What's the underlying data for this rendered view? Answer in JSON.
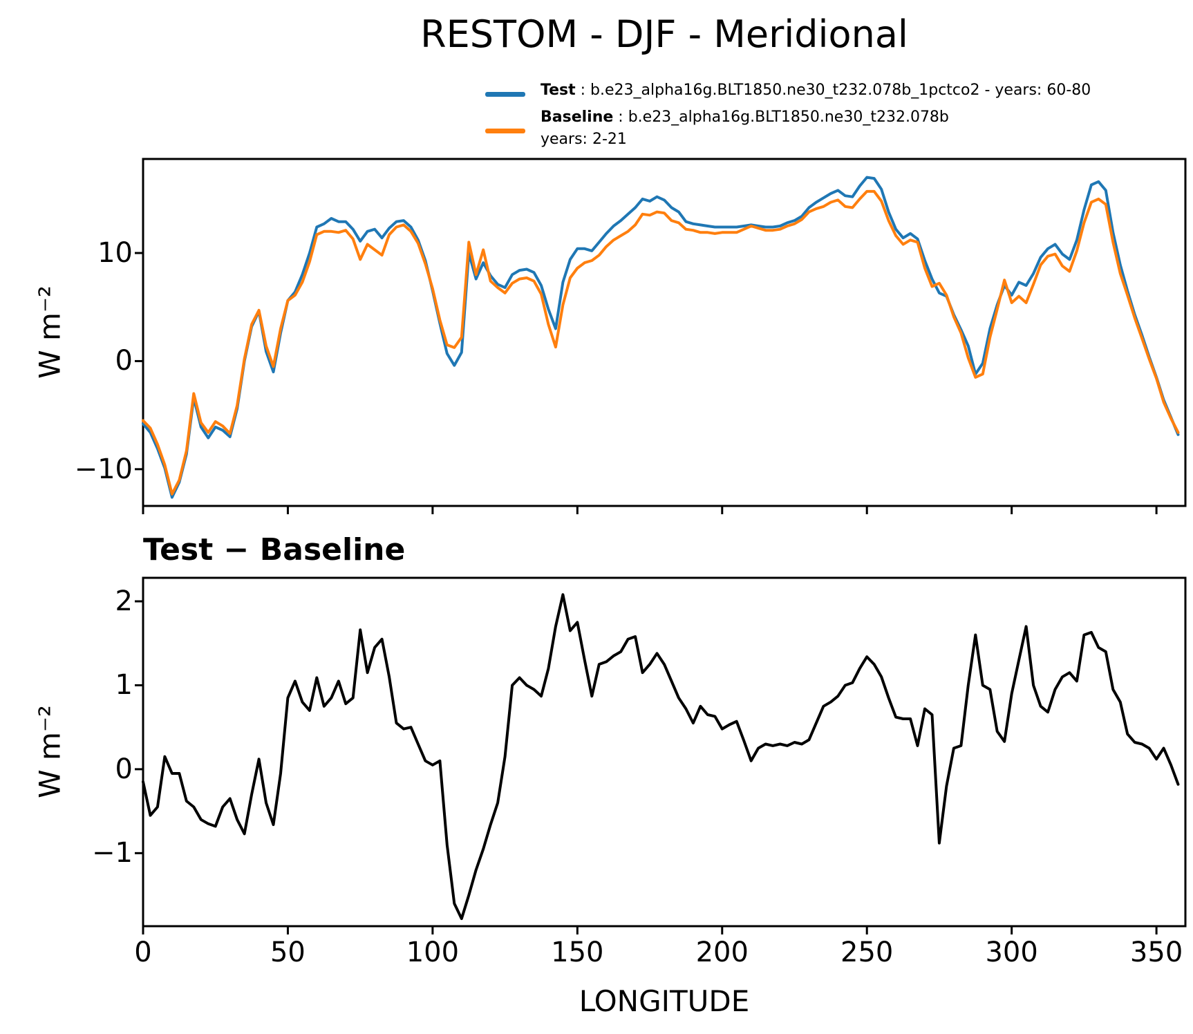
{
  "title": "RESTOM - DJF - Meridional",
  "legend": {
    "test_label": "Test",
    "test_rest": " : b.e23_alpha16g.BLT1850.ne30_t232.078b_1pctco2 - years: 60-80",
    "baseline_label": "Baseline",
    "baseline_rest": " : b.e23_alpha16g.BLT1850.ne30_t232.078b",
    "baseline_years": "years: 2-21"
  },
  "colors": {
    "test": "#1f77b4",
    "baseline": "#ff7f0e",
    "diff": "#000000",
    "axis": "#000000"
  },
  "panel2_title": "Test − Baseline",
  "xlabel": "LONGITUDE",
  "ylabel": "W m⁻²",
  "chart_data": [
    {
      "type": "line",
      "title": "RESTOM - DJF - Meridional",
      "xlabel": "",
      "ylabel": "W m⁻²",
      "xlim": [
        0,
        360
      ],
      "ylim": [
        -13.4,
        18.7
      ],
      "xticks": [
        0,
        50,
        100,
        150,
        200,
        250,
        300,
        350
      ],
      "yticks": [
        -10,
        0,
        10
      ],
      "grid": false,
      "legend_position": "above top right",
      "x_start": 0,
      "x_step": 2.5,
      "series": [
        {
          "name": "Test",
          "legend": "Test : b.e23_alpha16g.BLT1850.ne30_t232.078b_1pctco2 - years: 60-80",
          "color": "#1f77b4",
          "values": [
            -5.8,
            -6.6,
            -8.1,
            -9.9,
            -12.6,
            -11.2,
            -8.6,
            -3.4,
            -6.1,
            -7.1,
            -6.1,
            -6.4,
            -7.0,
            -4.4,
            0.0,
            3.2,
            4.6,
            0.9,
            -1.0,
            2.6,
            5.6,
            6.4,
            8.0,
            10.0,
            12.4,
            12.7,
            13.2,
            12.9,
            12.9,
            12.2,
            11.1,
            12.0,
            12.2,
            11.4,
            12.3,
            12.9,
            13.0,
            12.4,
            11.2,
            9.3,
            6.5,
            3.5,
            0.7,
            -0.4,
            0.8,
            10.0,
            7.6,
            9.1,
            7.9,
            7.1,
            6.8,
            8.0,
            8.4,
            8.5,
            8.2,
            7.0,
            4.8,
            3.0,
            7.3,
            9.4,
            10.4,
            10.4,
            10.2,
            11.0,
            11.8,
            12.5,
            13.0,
            13.6,
            14.2,
            15.0,
            14.8,
            15.2,
            14.9,
            14.2,
            13.8,
            12.9,
            12.7,
            12.6,
            12.5,
            12.4,
            12.4,
            12.4,
            12.4,
            12.5,
            12.6,
            12.5,
            12.4,
            12.4,
            12.5,
            12.8,
            13.0,
            13.4,
            14.2,
            14.7,
            15.1,
            15.5,
            15.8,
            15.3,
            15.2,
            16.2,
            17.0,
            16.9,
            15.9,
            13.8,
            12.2,
            11.4,
            11.8,
            11.3,
            9.3,
            7.6,
            6.3,
            6.0,
            4.3,
            2.9,
            1.4,
            -1.2,
            -0.2,
            3.0,
            5.2,
            7.0,
            6.1,
            7.3,
            7.0,
            8.1,
            9.6,
            10.4,
            10.8,
            9.9,
            9.4,
            11.2,
            14.0,
            16.3,
            16.6,
            15.8,
            11.9,
            8.9,
            6.5,
            4.3,
            2.4,
            0.4,
            -1.5,
            -3.6,
            -5.2,
            -6.8
          ]
        },
        {
          "name": "Baseline",
          "legend": "Baseline : b.e23_alpha16g.BLT1850.ne30_t232.078b years: 2-21",
          "color": "#ff7f0e",
          "values": [
            -5.5,
            -6.2,
            -7.7,
            -9.6,
            -12.3,
            -11.0,
            -8.3,
            -3.0,
            -5.7,
            -6.6,
            -5.6,
            -6.0,
            -6.7,
            -4.1,
            0.2,
            3.4,
            4.7,
            1.4,
            -0.5,
            3.0,
            5.6,
            6.1,
            7.3,
            9.2,
            11.7,
            12.0,
            12.0,
            11.9,
            12.1,
            11.3,
            9.4,
            10.8,
            10.3,
            9.8,
            11.7,
            12.4,
            12.6,
            12.0,
            10.9,
            9.0,
            6.7,
            3.8,
            1.5,
            1.25,
            2.2,
            11.0,
            8.0,
            10.3,
            7.4,
            6.8,
            6.3,
            7.2,
            7.6,
            7.7,
            7.4,
            6.2,
            3.4,
            1.3,
            5.2,
            7.7,
            8.6,
            9.1,
            9.3,
            9.8,
            10.6,
            11.2,
            11.6,
            12.0,
            12.6,
            13.6,
            13.5,
            13.8,
            13.7,
            13.0,
            12.8,
            12.2,
            12.1,
            11.9,
            11.9,
            11.8,
            11.9,
            11.9,
            11.9,
            12.2,
            12.5,
            12.3,
            12.1,
            12.1,
            12.2,
            12.5,
            12.7,
            13.1,
            13.8,
            14.1,
            14.3,
            14.7,
            14.9,
            14.3,
            14.2,
            15.0,
            15.7,
            15.7,
            14.8,
            13.0,
            11.6,
            10.8,
            11.2,
            11.0,
            8.6,
            6.9,
            7.2,
            6.1,
            4.1,
            2.6,
            0.3,
            -1.5,
            -1.2,
            2.2,
            4.8,
            7.5,
            5.4,
            6.0,
            5.4,
            7.1,
            8.9,
            9.7,
            9.9,
            8.8,
            8.3,
            10.2,
            12.8,
            14.7,
            15.0,
            14.5,
            11.0,
            8.1,
            6.1,
            4.0,
            2.1,
            0.2,
            -1.6,
            -3.8,
            -5.3,
            -6.6
          ]
        }
      ]
    },
    {
      "type": "line",
      "title": "Test − Baseline",
      "xlabel": "LONGITUDE",
      "ylabel": "W m⁻²",
      "xlim": [
        0,
        360
      ],
      "ylim": [
        -1.87,
        2.28
      ],
      "xticks": [
        0,
        50,
        100,
        150,
        200,
        250,
        300,
        350
      ],
      "yticks": [
        -1,
        0,
        1,
        2
      ],
      "grid": false,
      "x_start": 0,
      "x_step": 2.5,
      "series": [
        {
          "name": "Test − Baseline",
          "color": "#000000",
          "values": [
            -0.15,
            -0.55,
            -0.45,
            0.15,
            -0.05,
            -0.05,
            -0.38,
            -0.45,
            -0.6,
            -0.65,
            -0.68,
            -0.45,
            -0.35,
            -0.6,
            -0.77,
            -0.3,
            0.12,
            -0.4,
            -0.66,
            -0.05,
            0.85,
            1.05,
            0.8,
            0.7,
            1.09,
            0.75,
            0.85,
            1.05,
            0.78,
            0.85,
            1.66,
            1.15,
            1.45,
            1.55,
            1.1,
            0.55,
            0.48,
            0.5,
            0.3,
            0.1,
            0.05,
            0.1,
            -0.9,
            -1.6,
            -1.78,
            -1.5,
            -1.2,
            -0.95,
            -0.66,
            -0.4,
            0.15,
            1.0,
            1.09,
            1.0,
            0.95,
            0.87,
            1.2,
            1.7,
            2.08,
            1.65,
            1.75,
            1.3,
            0.87,
            1.25,
            1.28,
            1.35,
            1.4,
            1.55,
            1.58,
            1.15,
            1.25,
            1.38,
            1.25,
            1.05,
            0.85,
            0.72,
            0.55,
            0.75,
            0.65,
            0.63,
            0.48,
            0.53,
            0.57,
            0.34,
            0.1,
            0.25,
            0.3,
            0.28,
            0.3,
            0.28,
            0.32,
            0.3,
            0.35,
            0.55,
            0.75,
            0.8,
            0.87,
            1.0,
            1.03,
            1.2,
            1.34,
            1.25,
            1.1,
            0.85,
            0.62,
            0.6,
            0.6,
            0.28,
            0.72,
            0.65,
            -0.88,
            -0.2,
            0.25,
            0.28,
            1.0,
            1.6,
            1.0,
            0.95,
            0.45,
            0.33,
            0.9,
            1.3,
            1.7,
            1.0,
            0.75,
            0.68,
            0.95,
            1.1,
            1.15,
            1.05,
            1.6,
            1.63,
            1.45,
            1.4,
            0.95,
            0.8,
            0.42,
            0.32,
            0.3,
            0.25,
            0.12,
            0.25,
            0.05,
            -0.18
          ]
        }
      ]
    }
  ]
}
